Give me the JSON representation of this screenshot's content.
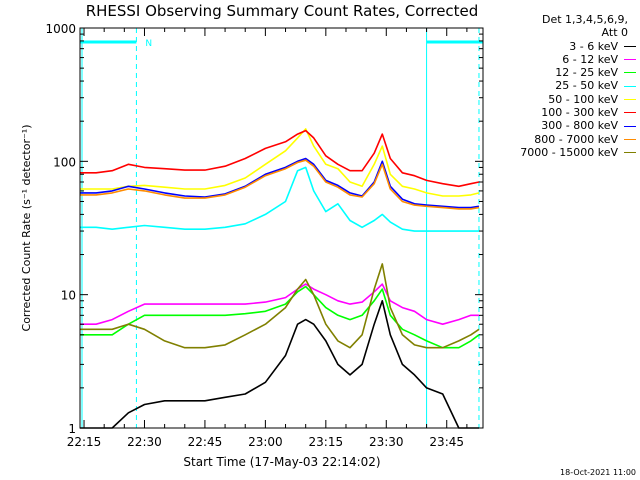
{
  "chart_data": {
    "type": "line",
    "title": "RHESSI Observing Summary Count Rates, Corrected",
    "xlabel": "Start Time (17-May-03 22:14:02)",
    "ylabel": "Corrected Count Rate (s⁻¹ detector⁻¹)",
    "yscale": "log",
    "ylim": [
      1,
      1000
    ],
    "xlim": [
      "22:14",
      "23:54"
    ],
    "x_ticks": [
      "22:15",
      "22:30",
      "22:45",
      "23:00",
      "23:15",
      "23:30",
      "23:45"
    ],
    "y_ticks": [
      "1",
      "10",
      "100",
      "1000"
    ],
    "grid": false,
    "legend_header": [
      "Det 1,3,4,5,6,9,",
      "Att 0"
    ],
    "night_marker": "N",
    "x": [
      "22:14",
      "22:18",
      "22:22",
      "22:26",
      "22:30",
      "22:35",
      "22:40",
      "22:45",
      "22:50",
      "22:55",
      "23:00",
      "23:05",
      "23:08",
      "23:10",
      "23:12",
      "23:15",
      "23:18",
      "23:21",
      "23:24",
      "23:27",
      "23:29",
      "23:31",
      "23:34",
      "23:37",
      "23:40",
      "23:44",
      "23:48",
      "23:51",
      "23:53"
    ],
    "series": [
      {
        "name": "3 - 6 keV",
        "color": "#000000",
        "values": [
          1.0,
          1.0,
          1.0,
          1.3,
          1.5,
          1.6,
          1.6,
          1.6,
          1.7,
          1.8,
          2.2,
          3.5,
          6.0,
          6.5,
          6.0,
          4.5,
          3.0,
          2.5,
          3.0,
          6.0,
          9.0,
          5.0,
          3.0,
          2.5,
          2.0,
          1.8,
          1.0,
          1.0,
          1.0
        ]
      },
      {
        "name": "6 - 12 keV",
        "color": "#ff00ff",
        "values": [
          6.0,
          6.0,
          6.5,
          7.5,
          8.5,
          8.5,
          8.5,
          8.5,
          8.5,
          8.5,
          8.8,
          9.5,
          11.0,
          12.0,
          11.0,
          10.0,
          9.0,
          8.5,
          8.8,
          10.5,
          12.0,
          9.0,
          8.0,
          7.5,
          6.5,
          6.0,
          6.5,
          7.0,
          7.0
        ]
      },
      {
        "name": "12 - 25 keV",
        "color": "#00ff00",
        "values": [
          5.0,
          5.0,
          5.0,
          6.0,
          7.0,
          7.0,
          7.0,
          7.0,
          7.0,
          7.2,
          7.5,
          8.5,
          10.5,
          11.5,
          10.0,
          8.0,
          7.0,
          6.5,
          7.0,
          9.0,
          11.0,
          7.0,
          5.5,
          5.0,
          4.5,
          4.0,
          4.0,
          4.5,
          5.0
        ]
      },
      {
        "name": "25 - 50 keV",
        "color": "#00ffff",
        "values": [
          32,
          32,
          31,
          32,
          33,
          32,
          31,
          31,
          32,
          34,
          40,
          50,
          85,
          90,
          60,
          42,
          48,
          36,
          32,
          36,
          40,
          35,
          31,
          30,
          30,
          30,
          30,
          30,
          30
        ]
      },
      {
        "name": "50 - 100 keV",
        "color": "#ffff00",
        "values": [
          62,
          62,
          62,
          65,
          66,
          64,
          62,
          62,
          66,
          75,
          95,
          120,
          150,
          175,
          130,
          95,
          88,
          70,
          65,
          95,
          130,
          80,
          65,
          62,
          58,
          55,
          55,
          56,
          58
        ]
      },
      {
        "name": "100 - 300 keV",
        "color": "#ff0000",
        "values": [
          82,
          82,
          85,
          95,
          90,
          88,
          86,
          86,
          92,
          105,
          125,
          140,
          160,
          170,
          150,
          110,
          95,
          85,
          85,
          115,
          160,
          105,
          82,
          78,
          72,
          68,
          65,
          68,
          70
        ]
      },
      {
        "name": "300 - 800 keV",
        "color": "#0000ff",
        "values": [
          58,
          58,
          60,
          65,
          62,
          58,
          55,
          54,
          57,
          65,
          80,
          90,
          100,
          105,
          95,
          72,
          66,
          58,
          55,
          70,
          100,
          65,
          52,
          48,
          47,
          46,
          45,
          45,
          46
        ]
      },
      {
        "name": "800 - 7000 keV",
        "color": "#ff8c00",
        "values": [
          56,
          56,
          58,
          62,
          60,
          56,
          53,
          53,
          56,
          64,
          78,
          88,
          98,
          102,
          92,
          70,
          64,
          56,
          54,
          68,
          95,
          62,
          50,
          47,
          46,
          45,
          44,
          44,
          45
        ]
      },
      {
        "name": "7000 - 15000 keV",
        "color": "#808000",
        "values": [
          5.5,
          5.5,
          5.5,
          6.0,
          5.5,
          4.5,
          4.0,
          4.0,
          4.2,
          5.0,
          6.0,
          8.0,
          11.0,
          13.0,
          10.0,
          6.0,
          4.5,
          4.0,
          5.0,
          11.0,
          17.0,
          8.0,
          5.0,
          4.2,
          4.0,
          4.0,
          4.5,
          5.0,
          5.5
        ]
      }
    ]
  },
  "footer_timestamp": "18-Oct-2021 11:00"
}
